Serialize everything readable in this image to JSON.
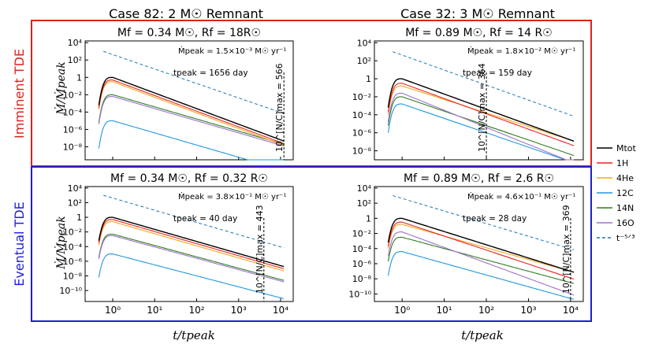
{
  "figure": {
    "col_titles": [
      "Case 82: 2 M☉ Remnant",
      "Case 32: 3 M☉ Remnant"
    ],
    "row_labels": [
      "Imminent TDE",
      "Eventual TDE"
    ],
    "row_colors": [
      "#e0201c",
      "#1e1ed2"
    ],
    "ylabel": "Ṁ/Ṁpeak",
    "xlabel": "t/tpeak"
  },
  "legend": {
    "items": [
      {
        "label": "Mtot",
        "color": "#000000",
        "dash": false
      },
      {
        "label": "1H",
        "color": "#e8251f",
        "dash": false
      },
      {
        "label": "4He",
        "color": "#f5a623",
        "dash": false
      },
      {
        "label": "12C",
        "color": "#2196e0",
        "dash": false
      },
      {
        "label": "14N",
        "color": "#2d7d1f",
        "dash": false
      },
      {
        "label": "16O",
        "color": "#9c72cc",
        "dash": false
      },
      {
        "label": "t⁻⁵ᐟ³",
        "color": "#1f77b4",
        "dash": true
      }
    ]
  },
  "chart_data": [
    {
      "type": "line",
      "panel": "top-left",
      "title": "Mf = 0.34 M☉,  Rf = 18R☉",
      "annotations": [
        "Ṁpeak = 1.5×10⁻³ M☉ yr⁻¹",
        "tpeak = 1656 day"
      ],
      "marker": {
        "x": 12000,
        "label": "10^[N/C]max = 566"
      },
      "xlim": [
        0.22,
        20000
      ],
      "ylim_log10": [
        -9.5,
        4.2
      ],
      "yticks": [
        "10⁴",
        "10²",
        "1",
        "10⁻²",
        "10⁻⁴",
        "10⁻⁶",
        "10⁻⁸"
      ],
      "ytick_exps": [
        4,
        2,
        0,
        -2,
        -4,
        -6,
        -8
      ],
      "xticks": [],
      "xtick_exps": [],
      "series": [
        {
          "name": "Mtot",
          "offset": 0.0,
          "slope": -1.8
        },
        {
          "name": "1H",
          "offset": -0.3,
          "slope": -1.8
        },
        {
          "name": "4He",
          "offset": -0.5,
          "slope": -1.8
        },
        {
          "name": "12C",
          "offset": -5.0,
          "slope": -1.4
        },
        {
          "name": "14N",
          "offset": -2.0,
          "slope": -1.4
        },
        {
          "name": "16O",
          "offset": -2.2,
          "slope": -1.4
        }
      ],
      "powerlaw": {
        "x0": 0.6,
        "y0_log10": 3.0,
        "slope": -1.6667
      }
    },
    {
      "type": "line",
      "panel": "top-right",
      "title": "Mf = 0.89 M☉,  Rf = 14 R☉",
      "annotations": [
        "Ṁpeak = 1.8×10⁻² M☉ yr⁻¹",
        "tpeak = 159 day"
      ],
      "marker": {
        "x": 100,
        "label": "10^[N/C]max = 364"
      },
      "xlim": [
        0.22,
        20000
      ],
      "ylim_log10": [
        -9.0,
        4.2
      ],
      "yticks": [
        "10⁴",
        "10²",
        "1",
        "10⁻²",
        "10⁻⁴",
        "10⁻⁶",
        "10⁻⁸"
      ],
      "ytick_exps": [
        4,
        2,
        0,
        -2,
        -4,
        -6,
        -8
      ],
      "xticks": [],
      "xtick_exps": [],
      "series": [
        {
          "name": "Mtot",
          "offset": 0.0,
          "slope": -1.7
        },
        {
          "name": "1H",
          "offset": -0.5,
          "slope": -1.7
        },
        {
          "name": "4He",
          "offset": -0.8,
          "slope": -1.5
        },
        {
          "name": "12C",
          "offset": -2.8,
          "slope": -1.6
        },
        {
          "name": "14N",
          "offset": -2.0,
          "slope": -1.6
        },
        {
          "name": "16O",
          "offset": -1.6,
          "slope": -1.9
        }
      ],
      "powerlaw": {
        "x0": 0.6,
        "y0_log10": 3.0,
        "slope": -1.6667
      }
    },
    {
      "type": "line",
      "panel": "bottom-left",
      "title": "Mf = 0.34 M☉,  Rf = 0.32 R☉",
      "annotations": [
        "Ṁpeak = 3.8×10⁻¹ M☉ yr⁻¹",
        "tpeak = 40 day"
      ],
      "marker": {
        "x": 4000,
        "label": "10^[N/C]max = 443"
      },
      "xlim": [
        0.22,
        20000
      ],
      "ylim_log10": [
        -11.5,
        4.2
      ],
      "yticks": [
        "10⁴",
        "10²",
        "1",
        "10⁻²",
        "10⁻⁴",
        "10⁻⁶",
        "10⁻⁸",
        "10⁻¹⁰"
      ],
      "ytick_exps": [
        4,
        2,
        0,
        -2,
        -4,
        -6,
        -8,
        -10
      ],
      "xticks": [
        "10⁰",
        "10¹",
        "10²",
        "10³",
        "10⁴"
      ],
      "xtick_exps": [
        0,
        1,
        2,
        3,
        4
      ],
      "series": [
        {
          "name": "Mtot",
          "offset": 0.0,
          "slope": -1.65
        },
        {
          "name": "1H",
          "offset": -0.3,
          "slope": -1.65
        },
        {
          "name": "4He",
          "offset": -0.6,
          "slope": -1.65
        },
        {
          "name": "12C",
          "offset": -5.0,
          "slope": -1.5
        },
        {
          "name": "14N",
          "offset": -2.3,
          "slope": -1.55
        },
        {
          "name": "16O",
          "offset": -2.5,
          "slope": -1.55
        }
      ],
      "powerlaw": {
        "x0": 0.6,
        "y0_log10": 3.0,
        "slope": -1.6667
      }
    },
    {
      "type": "line",
      "panel": "bottom-right",
      "title": "Mf = 0.89 M☉,  Rf = 2.6 R☉",
      "annotations": [
        "Ṁpeak = 4.6×10⁻¹ M☉ yr⁻¹",
        "tpeak = 28 day"
      ],
      "marker": {
        "x": 10000,
        "label": "10^[N/C]max = 369"
      },
      "xlim": [
        0.22,
        20000
      ],
      "ylim_log10": [
        -11.0,
        4.2
      ],
      "yticks": [
        "10⁴",
        "10²",
        "1",
        "10⁻²",
        "10⁻⁴",
        "10⁻⁶",
        "10⁻⁸",
        "10⁻¹⁰"
      ],
      "ytick_exps": [
        4,
        2,
        0,
        -2,
        -4,
        -6,
        -8,
        -10
      ],
      "xticks": [
        "10⁰",
        "10¹",
        "10²",
        "10³",
        "10⁴"
      ],
      "xtick_exps": [
        0,
        1,
        2,
        3,
        4
      ],
      "series": [
        {
          "name": "Mtot",
          "offset": 0.0,
          "slope": -1.75
        },
        {
          "name": "1H",
          "offset": -0.5,
          "slope": -1.85
        },
        {
          "name": "4He",
          "offset": -0.8,
          "slope": -1.55
        },
        {
          "name": "12C",
          "offset": -4.4,
          "slope": -1.55
        },
        {
          "name": "14N",
          "offset": -2.5,
          "slope": -1.5
        },
        {
          "name": "16O",
          "offset": -1.8,
          "slope": -2.05
        }
      ],
      "powerlaw": {
        "x0": 0.6,
        "y0_log10": 3.0,
        "slope": -1.6667
      }
    }
  ]
}
